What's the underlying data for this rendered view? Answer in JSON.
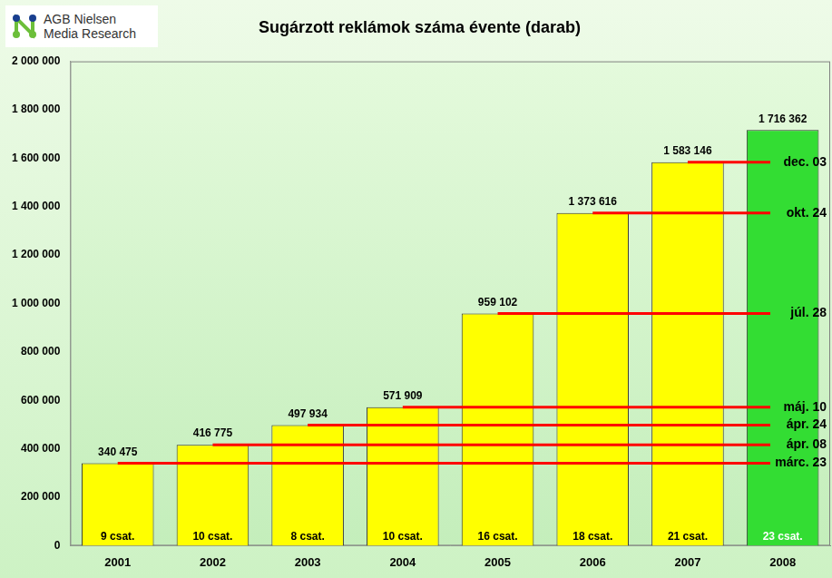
{
  "chart_data": {
    "type": "bar",
    "title": "Sugárzott reklámok száma évente (darab)",
    "logo": [
      "AGB Nielsen",
      "Media Research"
    ],
    "categories": [
      "2001",
      "2002",
      "2003",
      "2004",
      "2005",
      "2006",
      "2007",
      "2008"
    ],
    "values": [
      340475,
      416775,
      497934,
      571909,
      959102,
      1373616,
      1583146,
      1716362
    ],
    "value_labels": [
      "340 475",
      "416 775",
      "497 934",
      "571 909",
      "959 102",
      "1 373 616",
      "1 583 146",
      "1 716 362"
    ],
    "colors": [
      "#ffff00",
      "#ffff00",
      "#ffff00",
      "#ffff00",
      "#ffff00",
      "#ffff00",
      "#ffff00",
      "#33dd33"
    ],
    "channels": [
      "9 csat.",
      "10 csat.",
      "8 csat.",
      "10 csat.",
      "16 csat.",
      "18 csat.",
      "21 csat.",
      "23 csat."
    ],
    "annotations": [
      {
        "category": "2001",
        "label": "márc. 23"
      },
      {
        "category": "2002",
        "label": "ápr. 08"
      },
      {
        "category": "2003",
        "label": "ápr. 24"
      },
      {
        "category": "2004",
        "label": "máj. 10"
      },
      {
        "category": "2005",
        "label": "júl. 28"
      },
      {
        "category": "2006",
        "label": "okt. 24"
      },
      {
        "category": "2007",
        "label": "dec. 03"
      }
    ],
    "ylim": [
      0,
      2000000
    ],
    "yticks": [
      0,
      {
        "value": 200000,
        "label": "200 000"
      },
      {
        "value": 400000,
        "label": "400 000"
      },
      {
        "value": 600000,
        "label": "600 000"
      },
      {
        "value": 800000,
        "label": "800 000"
      },
      {
        "value": 1000000,
        "label": "1 000 000"
      },
      {
        "value": 1200000,
        "label": "1 200 000"
      },
      {
        "value": 1400000,
        "label": "1 400 000"
      },
      {
        "value": 1600000,
        "label": "1 600 000"
      },
      {
        "value": 1800000,
        "label": "1 800 000"
      },
      {
        "value": 2000000,
        "label": "2 000 000"
      }
    ],
    "grid": false,
    "data_labels": true
  }
}
